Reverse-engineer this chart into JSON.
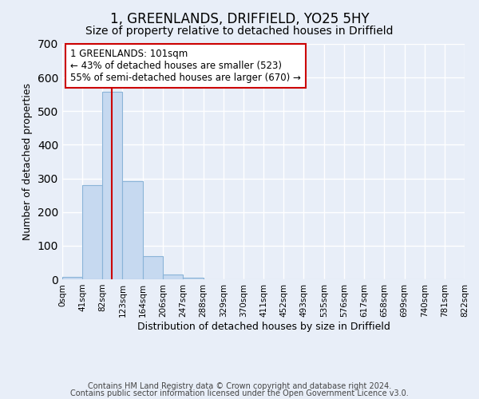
{
  "title": "1, GREENLANDS, DRIFFIELD, YO25 5HY",
  "subtitle": "Size of property relative to detached houses in Driffield",
  "xlabel": "Distribution of detached houses by size in Driffield",
  "ylabel": "Number of detached properties",
  "bar_values": [
    8,
    280,
    557,
    293,
    68,
    15,
    5,
    0,
    0,
    0,
    0,
    0,
    0,
    0,
    0,
    0,
    0,
    0,
    0,
    0
  ],
  "bin_edges": [
    0,
    41,
    82,
    123,
    164,
    206,
    247,
    288,
    329,
    370,
    411,
    452,
    493,
    535,
    576,
    617,
    658,
    699,
    740,
    781,
    822
  ],
  "tick_labels": [
    "0sqm",
    "41sqm",
    "82sqm",
    "123sqm",
    "164sqm",
    "206sqm",
    "247sqm",
    "288sqm",
    "329sqm",
    "370sqm",
    "411sqm",
    "452sqm",
    "493sqm",
    "535sqm",
    "576sqm",
    "617sqm",
    "658sqm",
    "699sqm",
    "740sqm",
    "781sqm",
    "822sqm"
  ],
  "bar_color": "#c6d9f0",
  "bar_edge_color": "#8ab4d8",
  "vline_x": 101,
  "vline_color": "#cc0000",
  "ylim": [
    0,
    700
  ],
  "yticks": [
    0,
    100,
    200,
    300,
    400,
    500,
    600,
    700
  ],
  "annotation_text": "1 GREENLANDS: 101sqm\n← 43% of detached houses are smaller (523)\n55% of semi-detached houses are larger (670) →",
  "annotation_box_color": "#ffffff",
  "annotation_box_edge": "#cc0000",
  "footer1": "Contains HM Land Registry data © Crown copyright and database right 2024.",
  "footer2": "Contains public sector information licensed under the Open Government Licence v3.0.",
  "background_color": "#e8eef8",
  "grid_color": "#ffffff",
  "title_fontsize": 12,
  "subtitle_fontsize": 10,
  "tick_fontsize": 7.5,
  "ylabel_fontsize": 9,
  "xlabel_fontsize": 9,
  "footer_fontsize": 7,
  "annot_fontsize": 8.5
}
